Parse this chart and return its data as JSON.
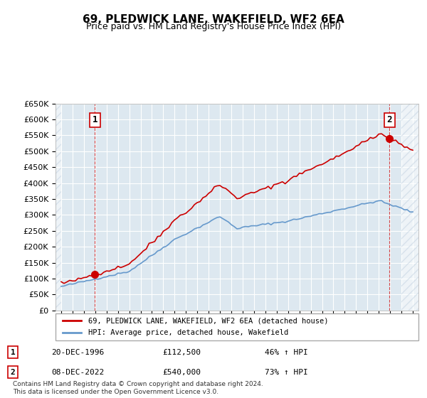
{
  "title": "69, PLEDWICK LANE, WAKEFIELD, WF2 6EA",
  "subtitle": "Price paid vs. HM Land Registry's House Price Index (HPI)",
  "legend_line1": "69, PLEDWICK LANE, WAKEFIELD, WF2 6EA (detached house)",
  "legend_line2": "HPI: Average price, detached house, Wakefield",
  "note": "Contains HM Land Registry data © Crown copyright and database right 2024.\nThis data is licensed under the Open Government Licence v3.0.",
  "sale1_label": "1",
  "sale1_date": "20-DEC-1996",
  "sale1_price": "£112,500",
  "sale1_hpi": "46% ↑ HPI",
  "sale2_label": "2",
  "sale2_date": "08-DEC-2022",
  "sale2_price": "£540,000",
  "sale2_hpi": "73% ↑ HPI",
  "sale1_x": 1996.97,
  "sale1_y": 112500,
  "sale2_x": 2022.93,
  "sale2_y": 540000,
  "hpi_color": "#6699cc",
  "price_color": "#cc0000",
  "bg_color": "#dde8f0",
  "hatch_color": "#c0d0e0",
  "grid_color": "#ffffff",
  "ylim": [
    0,
    650000
  ],
  "xlim_start": 1993.5,
  "xlim_end": 2025.5
}
